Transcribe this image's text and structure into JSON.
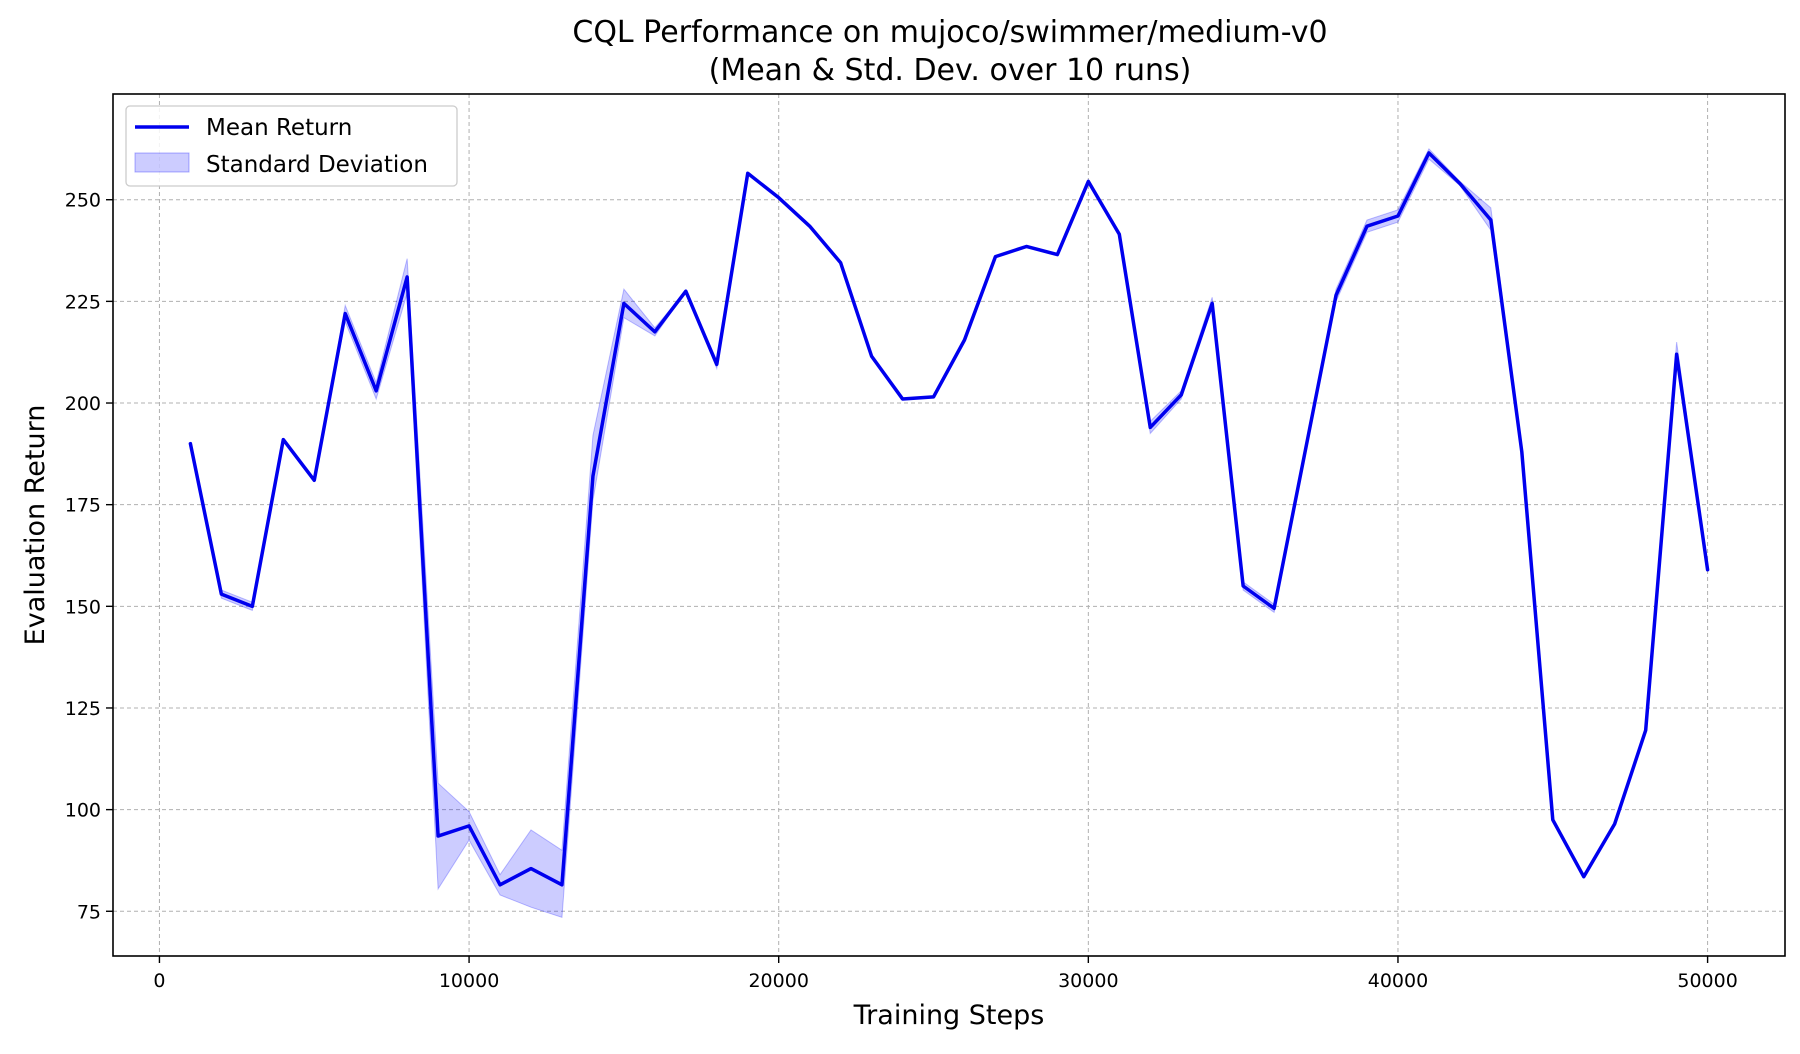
{
  "chart_data": {
    "type": "line",
    "title": "CQL Performance on mujoco/swimmer/medium-v0",
    "subtitle": "(Mean & Std. Dev. over 10 runs)",
    "xlabel": "Training Steps",
    "ylabel": "Evaluation Return",
    "xlim": [
      -1500,
      52500
    ],
    "ylim": [
      64,
      276
    ],
    "xticks": [
      0,
      10000,
      20000,
      30000,
      40000,
      50000
    ],
    "yticks": [
      75,
      100,
      125,
      150,
      175,
      200,
      225,
      250
    ],
    "grid": true,
    "legend_position": "top-left",
    "legend": [
      "Mean Return",
      "Standard Deviation"
    ],
    "x": [
      1000,
      2000,
      3000,
      4000,
      5000,
      6000,
      7000,
      8000,
      9000,
      10000,
      11000,
      12000,
      13000,
      14000,
      15000,
      16000,
      17000,
      18000,
      19000,
      20000,
      21000,
      22000,
      23000,
      24000,
      25000,
      26000,
      27000,
      28000,
      29000,
      30000,
      31000,
      32000,
      33000,
      34000,
      35000,
      36000,
      37000,
      38000,
      39000,
      40000,
      41000,
      42000,
      43000,
      44000,
      45000,
      46000,
      47000,
      48000,
      49000,
      50000
    ],
    "series": [
      {
        "name": "Mean Return",
        "color": "#0000ee",
        "values": [
          190,
          153,
          150,
          191,
          181,
          222,
          203,
          231,
          93.5,
          96,
          81.5,
          85.5,
          81.5,
          182,
          224.5,
          217.5,
          227.5,
          209.5,
          256.5,
          250.5,
          243.5,
          234.5,
          211.5,
          201,
          201.5,
          215.5,
          236,
          238.5,
          236.5,
          254.5,
          241.5,
          194,
          202,
          224.5,
          155,
          149.5,
          188,
          226.5,
          243.5,
          246,
          261.5,
          254,
          245,
          188,
          97.5,
          83.5,
          96.5,
          119.5,
          212,
          159
        ]
      },
      {
        "name": "Standard Deviation",
        "color": "#0000ff",
        "lower": [
          190,
          152,
          149,
          191,
          181,
          220,
          201,
          227,
          80.5,
          92.5,
          79,
          76,
          73.5,
          176,
          221,
          216.5,
          227.5,
          208.5,
          256.5,
          250.5,
          243.5,
          234.5,
          211.5,
          201,
          201.5,
          215.5,
          236,
          238.5,
          236.5,
          254.5,
          241.5,
          192.5,
          201,
          223.5,
          154,
          148.5,
          188,
          225,
          242,
          244.5,
          260,
          253.5,
          242.5,
          188,
          97.5,
          83.5,
          96.5,
          119.5,
          209.5,
          159
        ],
        "upper": [
          190,
          154,
          151,
          191,
          181,
          224,
          205,
          235.5,
          106.5,
          99.5,
          84,
          95,
          90,
          192,
          228,
          218.5,
          227.5,
          210.5,
          256.5,
          250.5,
          243.5,
          234.5,
          211.5,
          201,
          201.5,
          215.5,
          236,
          238.5,
          236.5,
          254.5,
          241.5,
          195.5,
          203,
          226,
          156,
          150.5,
          188,
          228,
          245,
          247.5,
          262.5,
          254.5,
          248,
          188,
          97.5,
          83.5,
          96.5,
          119.5,
          215,
          159
        ]
      }
    ]
  }
}
